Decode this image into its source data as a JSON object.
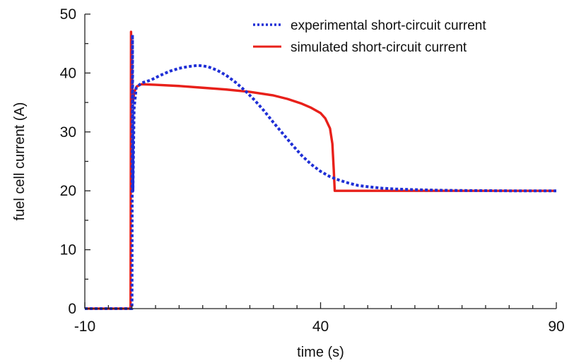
{
  "chart_data": {
    "type": "line",
    "xlabel": "time (s)",
    "ylabel": "fuel cell current (A)",
    "xlim": [
      -10,
      90
    ],
    "ylim": [
      0,
      50
    ],
    "x_ticks": [
      -10,
      40,
      90
    ],
    "y_ticks": [
      0,
      10,
      20,
      30,
      40,
      50
    ],
    "legend_position": "top-right",
    "grid": false,
    "series": [
      {
        "name": "experimental short-circuit current",
        "color": "#1f2fd6",
        "style": "dotted",
        "points": [
          [
            -10,
            0
          ],
          [
            0,
            0
          ],
          [
            0.1,
            46.5
          ],
          [
            0.2,
            20
          ],
          [
            0.45,
            34
          ],
          [
            0.9,
            37.5
          ],
          [
            2,
            38.3
          ],
          [
            4,
            38.8
          ],
          [
            6,
            39.6
          ],
          [
            8,
            40.3
          ],
          [
            10,
            40.8
          ],
          [
            12,
            41.1
          ],
          [
            14,
            41.3
          ],
          [
            16,
            41.1
          ],
          [
            18,
            40.5
          ],
          [
            20,
            39.6
          ],
          [
            22,
            38.4
          ],
          [
            24,
            37.0
          ],
          [
            26,
            35.4
          ],
          [
            28,
            33.6
          ],
          [
            30,
            31.6
          ],
          [
            32,
            29.7
          ],
          [
            34,
            27.8
          ],
          [
            36,
            26.0
          ],
          [
            38,
            24.5
          ],
          [
            40,
            23.3
          ],
          [
            42,
            22.4
          ],
          [
            44,
            21.8
          ],
          [
            46,
            21.3
          ],
          [
            48,
            20.9
          ],
          [
            50,
            20.7
          ],
          [
            53,
            20.45
          ],
          [
            56,
            20.3
          ],
          [
            60,
            20.2
          ],
          [
            65,
            20.1
          ],
          [
            70,
            20.05
          ],
          [
            80,
            20.0
          ],
          [
            90,
            20.0
          ]
        ]
      },
      {
        "name": "simulated short-circuit current",
        "color": "#e8201a",
        "style": "solid",
        "points": [
          [
            -10,
            0
          ],
          [
            -0.3,
            0
          ],
          [
            -0.2,
            47
          ],
          [
            0,
            38
          ],
          [
            0.2,
            35
          ],
          [
            0.5,
            36.8
          ],
          [
            1,
            37.7
          ],
          [
            2,
            38.1
          ],
          [
            5,
            38.0
          ],
          [
            10,
            37.8
          ],
          [
            15,
            37.5
          ],
          [
            20,
            37.2
          ],
          [
            25,
            36.8
          ],
          [
            30,
            36.2
          ],
          [
            33,
            35.6
          ],
          [
            36,
            34.8
          ],
          [
            38,
            34.1
          ],
          [
            40,
            33.2
          ],
          [
            41,
            32.3
          ],
          [
            42,
            30.6
          ],
          [
            42.5,
            28.0
          ],
          [
            42.8,
            23.5
          ],
          [
            43,
            20.0
          ],
          [
            45,
            20.0
          ],
          [
            60,
            20.0
          ],
          [
            75,
            20.0
          ],
          [
            90,
            20.0
          ]
        ]
      }
    ]
  }
}
